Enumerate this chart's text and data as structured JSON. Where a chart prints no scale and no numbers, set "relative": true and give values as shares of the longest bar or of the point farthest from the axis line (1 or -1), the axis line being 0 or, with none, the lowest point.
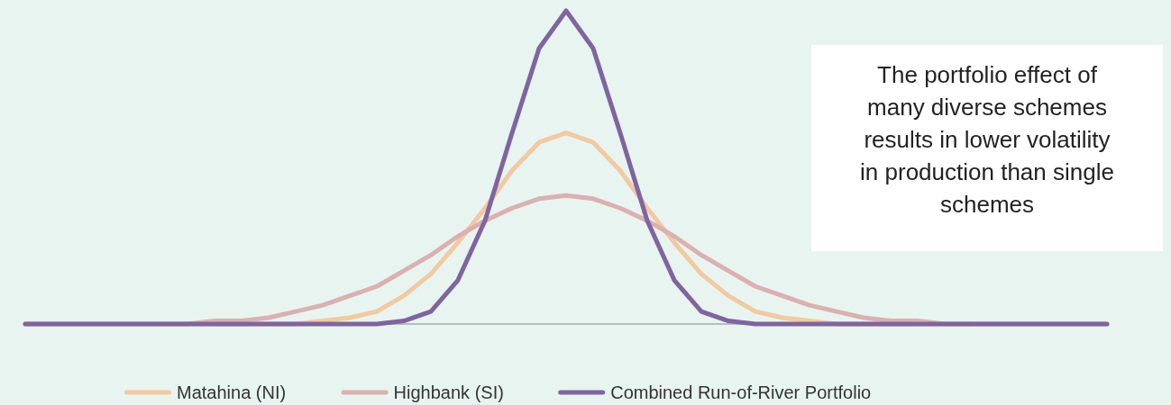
{
  "chart_data": {
    "type": "line",
    "relative": true,
    "legend": "bottom",
    "annotations": [
      "The portfolio effect of many diverse schemes results in lower volatility in production than single schemes"
    ],
    "categories": [
      null,
      null,
      null,
      null,
      null,
      null,
      null,
      null,
      null,
      null,
      null,
      null,
      null,
      null,
      null,
      null,
      null,
      null,
      null,
      null,
      null,
      null,
      null,
      null,
      null,
      null,
      null,
      null,
      null,
      null,
      null,
      null,
      null,
      null,
      null,
      null,
      null,
      null,
      null,
      null,
      null
    ],
    "series": [
      {
        "name": "Matahina (NI)",
        "color": "#f2c9a0",
        "values": [
          null,
          null,
          null,
          null,
          null,
          0,
          0,
          0,
          0,
          0,
          0,
          0.01,
          0.02,
          0.04,
          0.09,
          0.16,
          0.26,
          0.37,
          0.49,
          0.58,
          0.61,
          0.58,
          0.49,
          0.37,
          0.26,
          0.16,
          0.09,
          0.04,
          0.02,
          0.01,
          0,
          0,
          0,
          0,
          0,
          0,
          null,
          null,
          null,
          null,
          null
        ]
      },
      {
        "name": "Highbank (SI)",
        "color": "#dbb0b0",
        "values": [
          0,
          0,
          0,
          0,
          0,
          0,
          0,
          0.01,
          0.01,
          0.02,
          0.04,
          0.06,
          0.09,
          0.12,
          0.17,
          0.22,
          0.28,
          0.33,
          0.37,
          0.4,
          0.41,
          0.4,
          0.37,
          0.33,
          0.28,
          0.22,
          0.17,
          0.12,
          0.09,
          0.06,
          0.04,
          0.02,
          0.01,
          0.01,
          0,
          0,
          0,
          0,
          0,
          0,
          0
        ]
      },
      {
        "name": "Combined Run-of-River Portfolio",
        "color": "#7f64a0",
        "values": [
          0,
          0,
          0,
          0,
          0,
          0,
          0,
          0,
          0,
          0,
          0,
          0,
          0,
          0,
          0.01,
          0.04,
          0.14,
          0.33,
          0.61,
          0.88,
          1,
          0.88,
          0.61,
          0.33,
          0.14,
          0.04,
          0.01,
          0,
          0,
          0,
          0,
          0,
          0,
          0,
          0,
          0,
          0,
          0,
          0,
          0,
          0
        ]
      }
    ]
  }
}
